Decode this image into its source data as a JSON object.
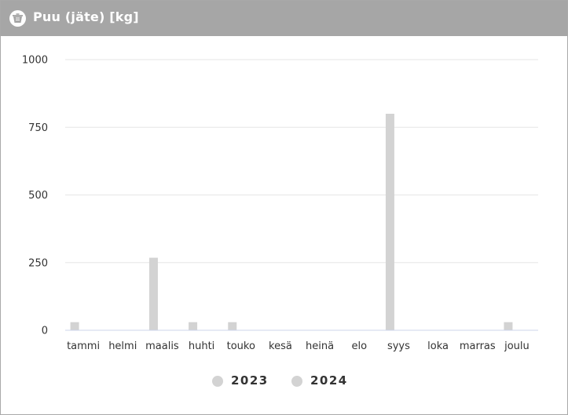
{
  "header": {
    "title": "Puu (jäte) [kg]",
    "icon": "recycle-bin-icon"
  },
  "colors": {
    "header_bg": "#a6a6a6",
    "series_2023": "#d3d3d3",
    "series_2024": "#d3d3d3",
    "gridline": "#e6e6e6",
    "baseline": "#ccd6eb"
  },
  "chart_data": {
    "type": "bar",
    "categories": [
      "tammi",
      "helmi",
      "maalis",
      "huhti",
      "touko",
      "kesä",
      "heinä",
      "elo",
      "syys",
      "loka",
      "marras",
      "joulu"
    ],
    "series": [
      {
        "name": "2023",
        "values": [
          30,
          0,
          268,
          30,
          30,
          0,
          0,
          0,
          800,
          0,
          0,
          30
        ]
      },
      {
        "name": "2024",
        "values": [
          0,
          0,
          0,
          0,
          0,
          0,
          0,
          0,
          0,
          0,
          0,
          0
        ]
      }
    ],
    "ylim": [
      0,
      1000
    ],
    "yticks": [
      0,
      250,
      500,
      750,
      1000
    ],
    "grid": true,
    "legend_position": "bottom-center"
  }
}
